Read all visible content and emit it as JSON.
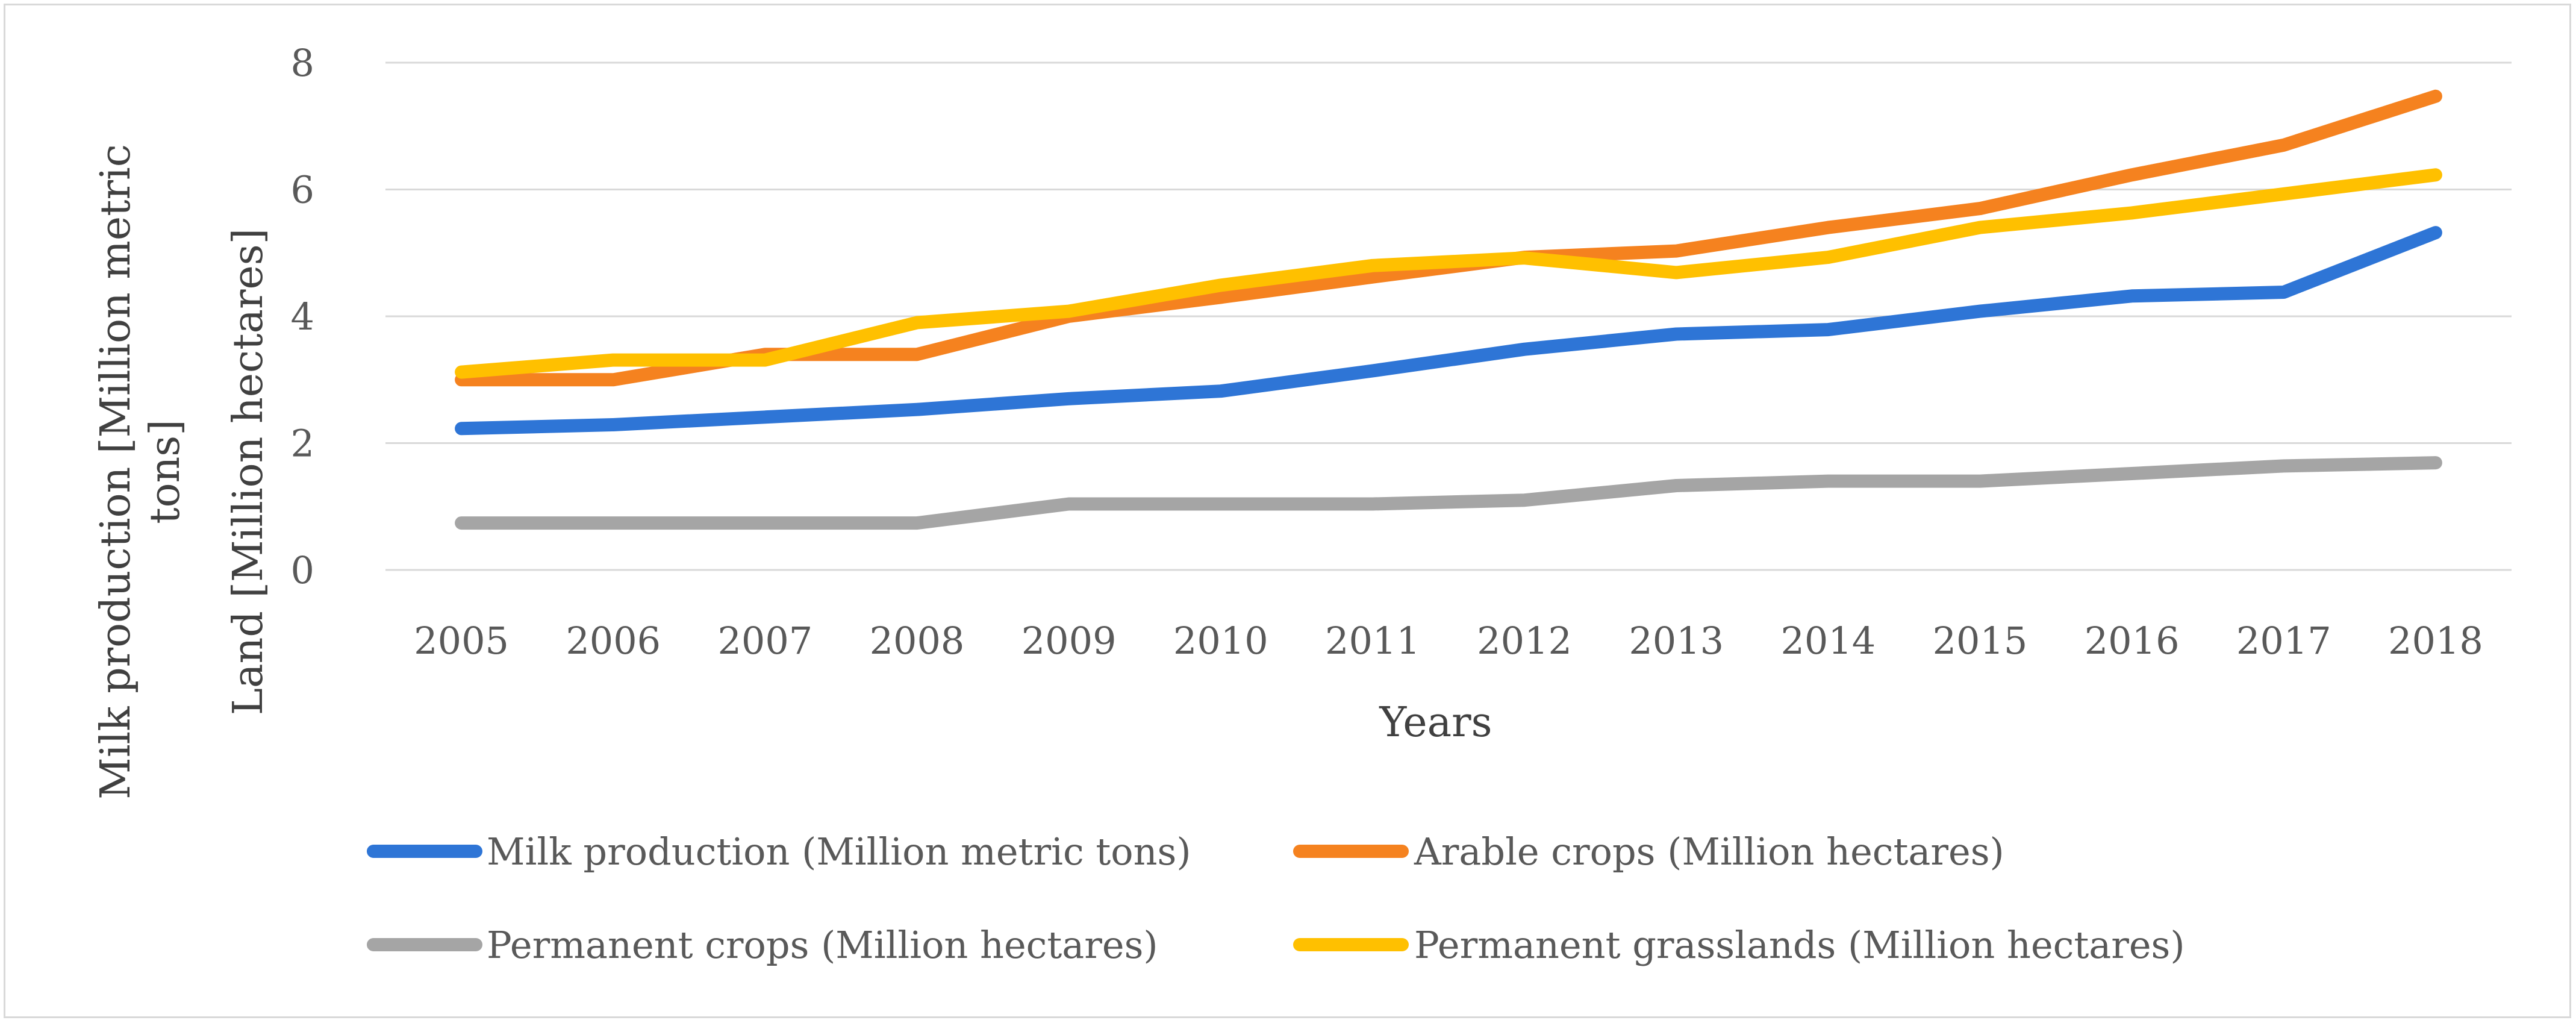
{
  "chart_data": {
    "type": "line",
    "title": "",
    "xlabel": "Years",
    "ylabel_lines": [
      "Milk production [Million metric",
      "tons]",
      "Land [Million hectares]"
    ],
    "ylim": [
      0,
      8
    ],
    "yticks": [
      0,
      2,
      4,
      6,
      8
    ],
    "grid": true,
    "legend_position": "bottom",
    "categories": [
      "2005",
      "2006",
      "2007",
      "2008",
      "2009",
      "2010",
      "2011",
      "2012",
      "2013",
      "2014",
      "2015",
      "2016",
      "2017",
      "2018"
    ],
    "series": [
      {
        "name": "Milk production (Million metric tons)",
        "color": "#2E75D6",
        "values": [
          2.23,
          2.29,
          2.41,
          2.53,
          2.7,
          2.82,
          3.14,
          3.48,
          3.72,
          3.79,
          4.08,
          4.32,
          4.38,
          5.32
        ]
      },
      {
        "name": "Arable crops (Million hectares)",
        "color": "#F5821F",
        "values": [
          3.0,
          3.0,
          3.4,
          3.4,
          4.0,
          4.3,
          4.62,
          4.93,
          5.03,
          5.4,
          5.7,
          6.23,
          6.7,
          7.47
        ]
      },
      {
        "name": "Permanent crops (Million hectares)",
        "color": "#A5A5A5",
        "values": [
          0.74,
          0.74,
          0.74,
          0.74,
          1.04,
          1.04,
          1.04,
          1.1,
          1.33,
          1.4,
          1.4,
          1.52,
          1.64,
          1.69
        ]
      },
      {
        "name": "Permanent grasslands (Million hectares)",
        "color": "#FFC000",
        "values": [
          3.12,
          3.31,
          3.31,
          3.9,
          4.08,
          4.49,
          4.8,
          4.92,
          4.69,
          4.93,
          5.4,
          5.63,
          5.93,
          6.23
        ]
      }
    ]
  }
}
